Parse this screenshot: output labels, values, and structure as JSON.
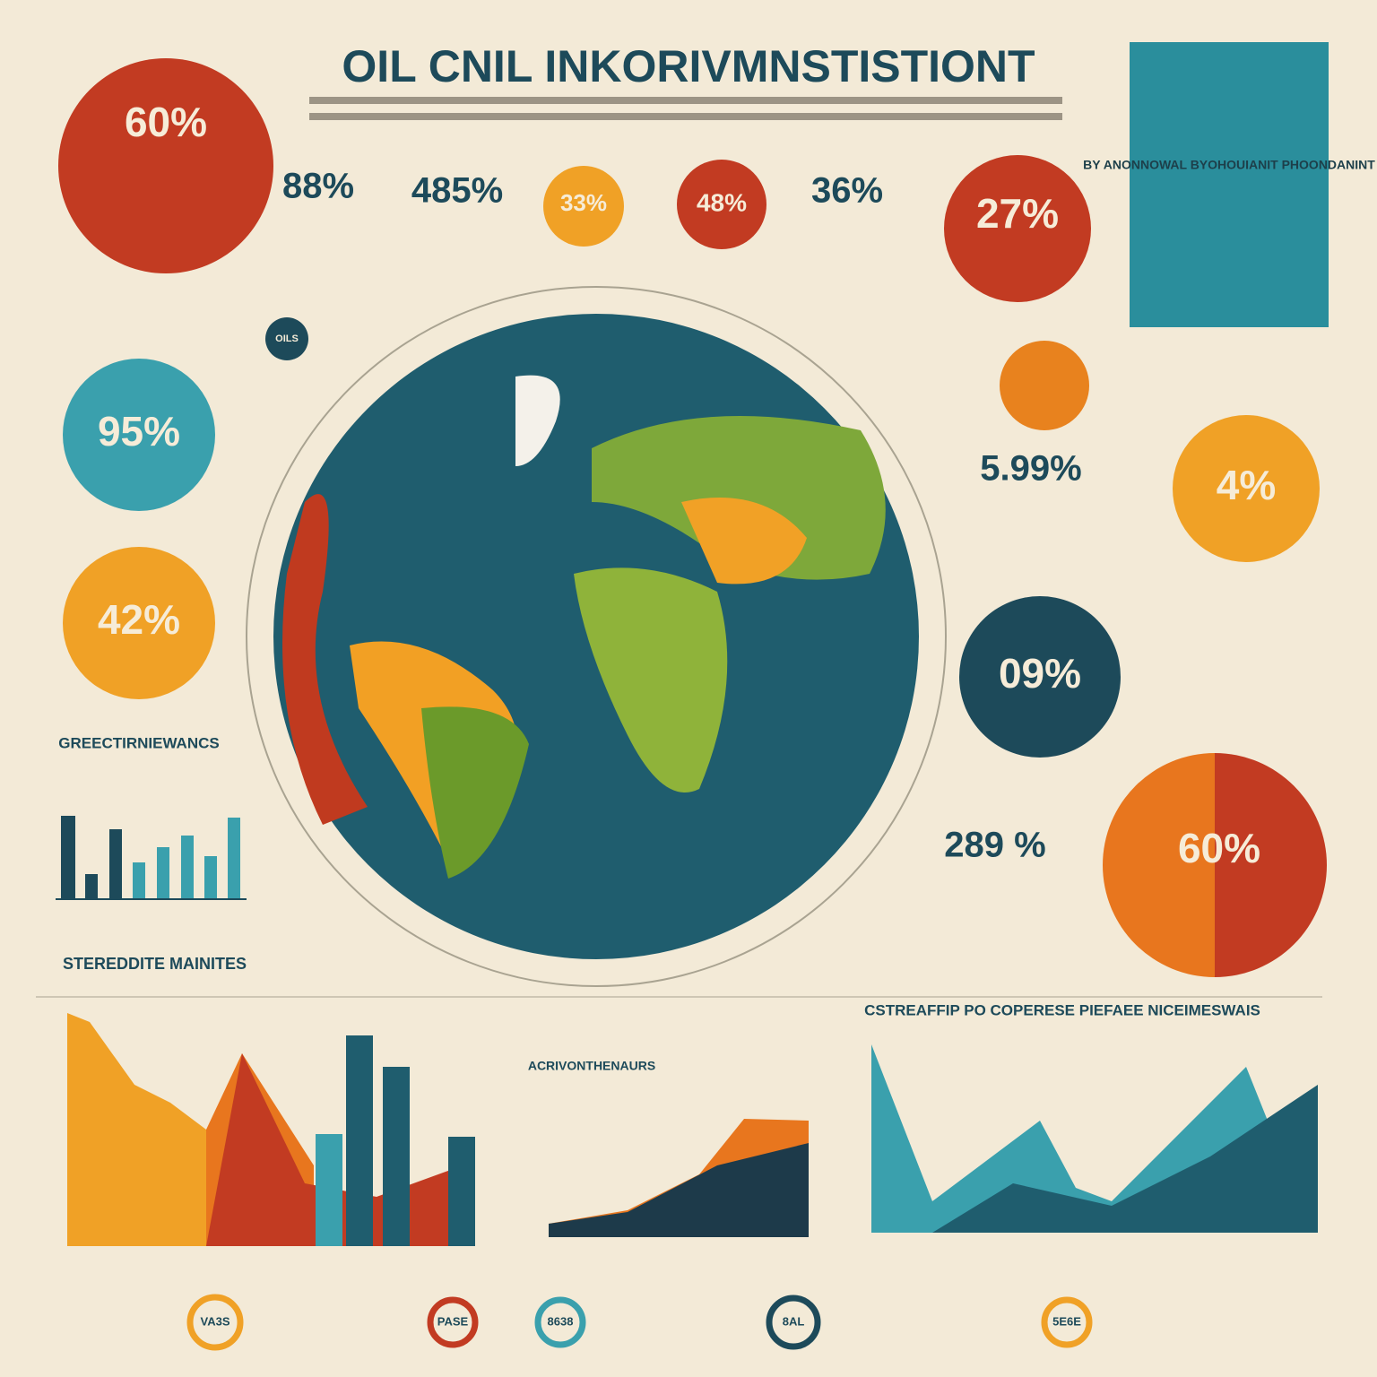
{
  "header": {
    "title": "OIL CNIL INKORIVMNSTISTIONT"
  },
  "stats": {
    "top_left": "60%",
    "a": "88%",
    "b": "485%",
    "c": "33%",
    "d": "48%",
    "e": "36%",
    "f": "27%",
    "oils": "OILS",
    "teal": "95%",
    "orange_left": "42%",
    "mid_right": "5.99%",
    "orange_right": "4%",
    "dark_right": "09%",
    "lower_right": "289 %",
    "pie": "60%"
  },
  "panel": {
    "title": "BY ANONNOWAL BYOHOUIANIT PHOONDANINT"
  },
  "sections": {
    "left_bars": "GREECTIRNIEWANCS",
    "bottom_left": "STEREDDITE MAINITES",
    "bottom_mid": "ACRIVONTHENAURS",
    "bottom_right": "CSTREAFFIP PO COPERESE PIEFAEE NICEIMESWAIS"
  },
  "rings": [
    "VA3S",
    "PASE",
    "8638",
    "8AL",
    "5E6E"
  ]
}
